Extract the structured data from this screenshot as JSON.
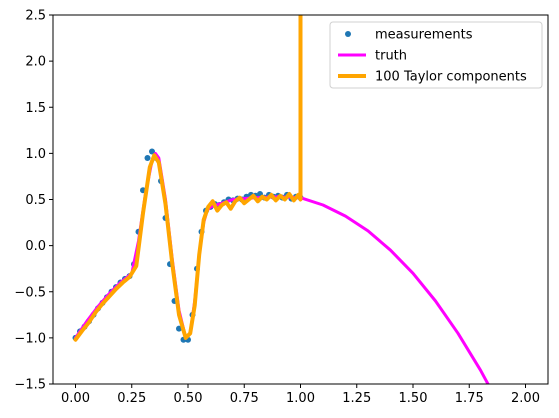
{
  "chart_data": {
    "type": "line",
    "title": "",
    "xlabel": "",
    "ylabel": "",
    "xlim": [
      -0.1,
      2.1
    ],
    "ylim": [
      -1.5,
      2.5
    ],
    "xticks": [
      0.0,
      0.25,
      0.5,
      0.75,
      1.0,
      1.25,
      1.5,
      1.75,
      2.0
    ],
    "xtick_labels": [
      "0.00",
      "0.25",
      "0.50",
      "0.75",
      "1.00",
      "1.25",
      "1.50",
      "1.75",
      "2.00"
    ],
    "yticks": [
      -1.5,
      -1.0,
      -0.5,
      0.0,
      0.5,
      1.0,
      1.5,
      2.0,
      2.5
    ],
    "ytick_labels": [
      "−1.5",
      "−1.0",
      "−0.5",
      "0.0",
      "0.5",
      "1.0",
      "1.5",
      "2.0",
      "2.5"
    ],
    "grid": false,
    "legend_position": "top-right",
    "series": [
      {
        "name": "measurements",
        "kind": "scatter",
        "color": "#1f77b4",
        "x": [
          0.0,
          0.02,
          0.04,
          0.06,
          0.08,
          0.1,
          0.12,
          0.14,
          0.16,
          0.18,
          0.2,
          0.22,
          0.24,
          0.26,
          0.28,
          0.3,
          0.32,
          0.34,
          0.36,
          0.38,
          0.4,
          0.42,
          0.44,
          0.46,
          0.48,
          0.5,
          0.52,
          0.54,
          0.56,
          0.58,
          0.6,
          0.62,
          0.64,
          0.66,
          0.68,
          0.7,
          0.72,
          0.74,
          0.76,
          0.78,
          0.8,
          0.82,
          0.84,
          0.86,
          0.88,
          0.9,
          0.92,
          0.94,
          0.96,
          0.98,
          1.0
        ],
        "y": [
          -1.0,
          -0.93,
          -0.88,
          -0.82,
          -0.75,
          -0.68,
          -0.62,
          -0.56,
          -0.5,
          -0.45,
          -0.4,
          -0.36,
          -0.33,
          -0.2,
          0.15,
          0.6,
          0.95,
          1.02,
          0.95,
          0.7,
          0.3,
          -0.2,
          -0.6,
          -0.9,
          -1.02,
          -1.02,
          -0.75,
          -0.25,
          0.15,
          0.38,
          0.42,
          0.45,
          0.44,
          0.47,
          0.5,
          0.49,
          0.51,
          0.5,
          0.53,
          0.55,
          0.54,
          0.56,
          0.52,
          0.55,
          0.53,
          0.54,
          0.52,
          0.55,
          0.51,
          0.53,
          0.52
        ]
      },
      {
        "name": "truth",
        "kind": "line",
        "color": "#ff00ff",
        "x": [
          0.0,
          0.05,
          0.1,
          0.15,
          0.2,
          0.25,
          0.28,
          0.31,
          0.34,
          0.355,
          0.37,
          0.4,
          0.43,
          0.46,
          0.49,
          0.51,
          0.53,
          0.55,
          0.57,
          0.585,
          0.6,
          0.7,
          0.8,
          0.9,
          1.0,
          1.1,
          1.2,
          1.3,
          1.4,
          1.5,
          1.6,
          1.7,
          1.8,
          1.9
        ],
        "y": [
          -1.0,
          -0.82,
          -0.66,
          -0.52,
          -0.4,
          -0.3,
          0.05,
          0.55,
          0.92,
          1.0,
          0.95,
          0.5,
          -0.15,
          -0.7,
          -1.0,
          -0.95,
          -0.6,
          -0.1,
          0.25,
          0.38,
          0.42,
          0.5,
          0.52,
          0.53,
          0.52,
          0.44,
          0.32,
          0.16,
          -0.05,
          -0.3,
          -0.6,
          -0.95,
          -1.35,
          -1.8
        ]
      },
      {
        "name": "100 Taylor components",
        "kind": "line",
        "color": "#ffa500",
        "x": [
          0.0,
          0.03,
          0.06,
          0.09,
          0.12,
          0.15,
          0.18,
          0.21,
          0.24,
          0.27,
          0.3,
          0.33,
          0.35,
          0.37,
          0.4,
          0.43,
          0.46,
          0.49,
          0.51,
          0.53,
          0.55,
          0.57,
          0.59,
          0.61,
          0.63,
          0.65,
          0.67,
          0.69,
          0.71,
          0.73,
          0.75,
          0.77,
          0.79,
          0.81,
          0.83,
          0.85,
          0.87,
          0.89,
          0.91,
          0.93,
          0.95,
          0.97,
          0.99,
          1.0,
          1.0
        ],
        "y": [
          -1.02,
          -0.92,
          -0.83,
          -0.72,
          -0.63,
          -0.55,
          -0.47,
          -0.4,
          -0.34,
          -0.22,
          0.35,
          0.85,
          0.98,
          0.9,
          0.45,
          -0.2,
          -0.75,
          -1.0,
          -0.95,
          -0.65,
          -0.1,
          0.28,
          0.42,
          0.48,
          0.38,
          0.44,
          0.47,
          0.4,
          0.48,
          0.52,
          0.46,
          0.5,
          0.54,
          0.48,
          0.53,
          0.5,
          0.55,
          0.49,
          0.54,
          0.5,
          0.56,
          0.49,
          0.55,
          0.5,
          2.5
        ]
      }
    ]
  }
}
